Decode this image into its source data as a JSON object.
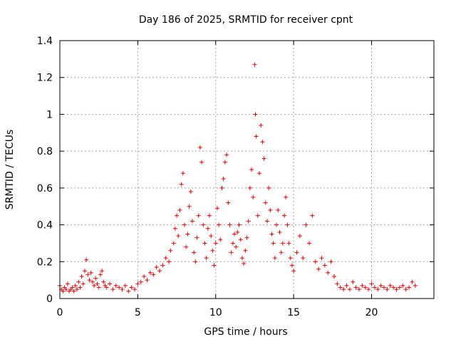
{
  "chart_data": {
    "type": "scatter",
    "title": "Day 186 of 2025, SRMTID for receiver cpnt",
    "xlabel": "GPS time / hours",
    "ylabel": "SRMTID / TECUs",
    "xlim": [
      0,
      24
    ],
    "ylim": [
      0,
      1.4
    ],
    "xticks": [
      0,
      5,
      10,
      15,
      20
    ],
    "yticks": [
      0,
      0.2,
      0.4,
      0.6,
      0.8,
      1,
      1.2,
      1.4
    ],
    "grid": true,
    "marker": "+",
    "series": [
      {
        "name": "SRMTID",
        "color": "#e00000",
        "points": [
          [
            0.0,
            0.07
          ],
          [
            0.1,
            0.05
          ],
          [
            0.2,
            0.04
          ],
          [
            0.3,
            0.06
          ],
          [
            0.4,
            0.05
          ],
          [
            0.5,
            0.08
          ],
          [
            0.6,
            0.04
          ],
          [
            0.7,
            0.05
          ],
          [
            0.8,
            0.06
          ],
          [
            0.9,
            0.04
          ],
          [
            1.0,
            0.07
          ],
          [
            1.1,
            0.05
          ],
          [
            1.2,
            0.09
          ],
          [
            1.3,
            0.06
          ],
          [
            1.4,
            0.12
          ],
          [
            1.5,
            0.08
          ],
          [
            1.6,
            0.15
          ],
          [
            1.7,
            0.21
          ],
          [
            1.8,
            0.13
          ],
          [
            1.9,
            0.1
          ],
          [
            2.0,
            0.14
          ],
          [
            2.1,
            0.09
          ],
          [
            2.2,
            0.07
          ],
          [
            2.3,
            0.11
          ],
          [
            2.4,
            0.08
          ],
          [
            2.5,
            0.06
          ],
          [
            2.6,
            0.13
          ],
          [
            2.7,
            0.15
          ],
          [
            2.8,
            0.09
          ],
          [
            2.9,
            0.07
          ],
          [
            3.0,
            0.06
          ],
          [
            3.2,
            0.08
          ],
          [
            3.4,
            0.05
          ],
          [
            3.6,
            0.07
          ],
          [
            3.8,
            0.06
          ],
          [
            4.0,
            0.05
          ],
          [
            4.2,
            0.07
          ],
          [
            4.4,
            0.04
          ],
          [
            4.6,
            0.06
          ],
          [
            4.8,
            0.05
          ],
          [
            5.0,
            0.08
          ],
          [
            5.2,
            0.09
          ],
          [
            5.4,
            0.12
          ],
          [
            5.6,
            0.1
          ],
          [
            5.8,
            0.14
          ],
          [
            6.0,
            0.13
          ],
          [
            6.2,
            0.17
          ],
          [
            6.4,
            0.15
          ],
          [
            6.6,
            0.18
          ],
          [
            6.8,
            0.22
          ],
          [
            7.0,
            0.2
          ],
          [
            7.1,
            0.26
          ],
          [
            7.3,
            0.3
          ],
          [
            7.4,
            0.38
          ],
          [
            7.5,
            0.45
          ],
          [
            7.6,
            0.34
          ],
          [
            7.7,
            0.48
          ],
          [
            7.8,
            0.62
          ],
          [
            7.9,
            0.68
          ],
          [
            8.0,
            0.4
          ],
          [
            8.1,
            0.28
          ],
          [
            8.2,
            0.35
          ],
          [
            8.3,
            0.5
          ],
          [
            8.4,
            0.58
          ],
          [
            8.5,
            0.42
          ],
          [
            8.6,
            0.25
          ],
          [
            8.7,
            0.2
          ],
          [
            8.8,
            0.33
          ],
          [
            8.9,
            0.45
          ],
          [
            9.0,
            0.82
          ],
          [
            9.1,
            0.74
          ],
          [
            9.2,
            0.4
          ],
          [
            9.3,
            0.3
          ],
          [
            9.4,
            0.22
          ],
          [
            9.5,
            0.38
          ],
          [
            9.6,
            0.45
          ],
          [
            9.7,
            0.34
          ],
          [
            9.8,
            0.26
          ],
          [
            9.9,
            0.18
          ],
          [
            10.0,
            0.3
          ],
          [
            10.1,
            0.49
          ],
          [
            10.2,
            0.4
          ],
          [
            10.3,
            0.32
          ],
          [
            10.4,
            0.6
          ],
          [
            10.5,
            0.65
          ],
          [
            10.6,
            0.74
          ],
          [
            10.7,
            0.78
          ],
          [
            10.8,
            0.52
          ],
          [
            10.9,
            0.4
          ],
          [
            11.0,
            0.25
          ],
          [
            11.1,
            0.3
          ],
          [
            11.2,
            0.35
          ],
          [
            11.3,
            0.28
          ],
          [
            11.4,
            0.36
          ],
          [
            11.5,
            0.4
          ],
          [
            11.6,
            0.32
          ],
          [
            11.7,
            0.22
          ],
          [
            11.8,
            0.19
          ],
          [
            11.9,
            0.26
          ],
          [
            12.0,
            0.33
          ],
          [
            12.1,
            0.42
          ],
          [
            12.2,
            0.6
          ],
          [
            12.3,
            0.7
          ],
          [
            12.4,
            0.55
          ],
          [
            12.5,
            1.27
          ],
          [
            12.55,
            1.0
          ],
          [
            12.6,
            0.88
          ],
          [
            12.7,
            0.45
          ],
          [
            12.8,
            0.68
          ],
          [
            12.9,
            0.94
          ],
          [
            13.0,
            0.85
          ],
          [
            13.1,
            0.76
          ],
          [
            13.2,
            0.52
          ],
          [
            13.3,
            0.42
          ],
          [
            13.4,
            0.6
          ],
          [
            13.5,
            0.48
          ],
          [
            13.6,
            0.35
          ],
          [
            13.7,
            0.3
          ],
          [
            13.8,
            0.22
          ],
          [
            13.9,
            0.4
          ],
          [
            14.0,
            0.48
          ],
          [
            14.1,
            0.36
          ],
          [
            14.2,
            0.25
          ],
          [
            14.3,
            0.3
          ],
          [
            14.4,
            0.45
          ],
          [
            14.5,
            0.55
          ],
          [
            14.6,
            0.4
          ],
          [
            14.7,
            0.3
          ],
          [
            14.8,
            0.22
          ],
          [
            14.9,
            0.18
          ],
          [
            15.0,
            0.15
          ],
          [
            15.2,
            0.25
          ],
          [
            15.4,
            0.34
          ],
          [
            15.6,
            0.22
          ],
          [
            15.8,
            0.4
          ],
          [
            16.0,
            0.3
          ],
          [
            16.2,
            0.45
          ],
          [
            16.4,
            0.2
          ],
          [
            16.6,
            0.16
          ],
          [
            16.8,
            0.22
          ],
          [
            17.0,
            0.18
          ],
          [
            17.2,
            0.14
          ],
          [
            17.4,
            0.2
          ],
          [
            17.6,
            0.12
          ],
          [
            17.8,
            0.08
          ],
          [
            18.0,
            0.06
          ],
          [
            18.2,
            0.05
          ],
          [
            18.4,
            0.07
          ],
          [
            18.6,
            0.05
          ],
          [
            18.8,
            0.09
          ],
          [
            19.0,
            0.06
          ],
          [
            19.2,
            0.05
          ],
          [
            19.4,
            0.07
          ],
          [
            19.6,
            0.06
          ],
          [
            19.8,
            0.05
          ],
          [
            20.0,
            0.08
          ],
          [
            20.2,
            0.06
          ],
          [
            20.4,
            0.05
          ],
          [
            20.6,
            0.07
          ],
          [
            20.8,
            0.06
          ],
          [
            21.0,
            0.05
          ],
          [
            21.2,
            0.07
          ],
          [
            21.4,
            0.06
          ],
          [
            21.6,
            0.05
          ],
          [
            21.8,
            0.06
          ],
          [
            22.0,
            0.07
          ],
          [
            22.2,
            0.05
          ],
          [
            22.4,
            0.06
          ],
          [
            22.6,
            0.09
          ],
          [
            22.8,
            0.07
          ]
        ]
      }
    ]
  }
}
